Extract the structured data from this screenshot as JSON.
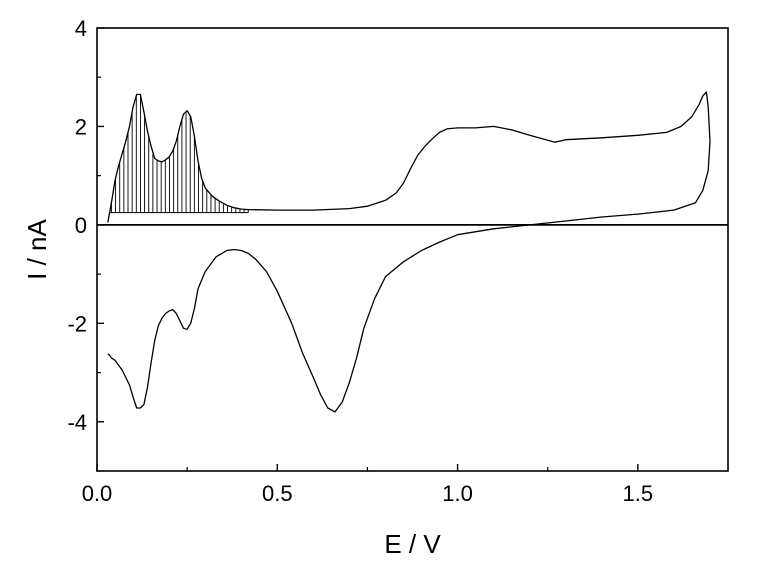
{
  "chart_data": {
    "type": "line",
    "title": "",
    "xlabel": "E / V",
    "ylabel": "I / nA",
    "xlim": [
      0.0,
      1.75
    ],
    "ylim": [
      -5,
      4
    ],
    "x_ticks": [
      "0.0",
      "0.5",
      "1.0",
      "1.5"
    ],
    "x_tick_values": [
      0.0,
      0.5,
      1.0,
      1.5
    ],
    "y_ticks": [
      "4",
      "2",
      "0",
      "-2",
      "-4"
    ],
    "y_tick_values": [
      4,
      2,
      0,
      -2,
      -4
    ],
    "grid": false,
    "zero_line": true,
    "shaded_region": {
      "description": "hatched area between anodic scan and baseline",
      "x_range": [
        0.03,
        0.42
      ],
      "baseline": 0.25
    },
    "series": [
      {
        "points": [
          [
            0.03,
            0.05
          ],
          [
            0.04,
            0.45
          ],
          [
            0.05,
            0.9
          ],
          [
            0.06,
            1.2
          ],
          [
            0.07,
            1.45
          ],
          [
            0.08,
            1.7
          ],
          [
            0.09,
            2.0
          ],
          [
            0.1,
            2.4
          ],
          [
            0.11,
            2.65
          ],
          [
            0.12,
            2.65
          ],
          [
            0.13,
            2.3
          ],
          [
            0.14,
            1.9
          ],
          [
            0.15,
            1.6
          ],
          [
            0.16,
            1.35
          ],
          [
            0.17,
            1.3
          ],
          [
            0.18,
            1.28
          ],
          [
            0.19,
            1.32
          ],
          [
            0.2,
            1.38
          ],
          [
            0.21,
            1.5
          ],
          [
            0.22,
            1.7
          ],
          [
            0.23,
            2.0
          ],
          [
            0.24,
            2.25
          ],
          [
            0.25,
            2.32
          ],
          [
            0.26,
            2.2
          ],
          [
            0.27,
            1.8
          ],
          [
            0.28,
            1.3
          ],
          [
            0.29,
            0.95
          ],
          [
            0.3,
            0.75
          ],
          [
            0.32,
            0.58
          ],
          [
            0.34,
            0.48
          ],
          [
            0.36,
            0.4
          ],
          [
            0.38,
            0.35
          ],
          [
            0.4,
            0.32
          ],
          [
            0.42,
            0.31
          ],
          [
            0.5,
            0.3
          ],
          [
            0.6,
            0.3
          ],
          [
            0.7,
            0.33
          ],
          [
            0.75,
            0.38
          ],
          [
            0.8,
            0.5
          ],
          [
            0.83,
            0.65
          ],
          [
            0.85,
            0.85
          ],
          [
            0.87,
            1.15
          ],
          [
            0.89,
            1.42
          ],
          [
            0.91,
            1.6
          ],
          [
            0.93,
            1.75
          ],
          [
            0.95,
            1.88
          ],
          [
            0.97,
            1.95
          ],
          [
            1.0,
            1.97
          ],
          [
            1.05,
            1.97
          ],
          [
            1.1,
            2.0
          ],
          [
            1.15,
            1.93
          ],
          [
            1.2,
            1.82
          ],
          [
            1.25,
            1.72
          ],
          [
            1.27,
            1.68
          ],
          [
            1.3,
            1.73
          ],
          [
            1.4,
            1.77
          ],
          [
            1.5,
            1.82
          ],
          [
            1.58,
            1.88
          ],
          [
            1.62,
            2.0
          ],
          [
            1.65,
            2.2
          ],
          [
            1.67,
            2.45
          ],
          [
            1.68,
            2.62
          ],
          [
            1.69,
            2.7
          ],
          [
            1.695,
            2.4
          ],
          [
            1.7,
            1.7
          ],
          [
            1.695,
            1.1
          ],
          [
            1.68,
            0.7
          ],
          [
            1.66,
            0.45
          ],
          [
            1.6,
            0.3
          ],
          [
            1.5,
            0.22
          ],
          [
            1.4,
            0.16
          ],
          [
            1.3,
            0.08
          ],
          [
            1.2,
            0.0
          ],
          [
            1.1,
            -0.08
          ],
          [
            1.0,
            -0.2
          ],
          [
            0.95,
            -0.35
          ],
          [
            0.9,
            -0.52
          ],
          [
            0.85,
            -0.75
          ],
          [
            0.8,
            -1.05
          ],
          [
            0.77,
            -1.5
          ],
          [
            0.74,
            -2.1
          ],
          [
            0.72,
            -2.7
          ],
          [
            0.7,
            -3.2
          ],
          [
            0.68,
            -3.6
          ],
          [
            0.66,
            -3.8
          ],
          [
            0.64,
            -3.72
          ],
          [
            0.62,
            -3.45
          ],
          [
            0.6,
            -3.1
          ],
          [
            0.57,
            -2.6
          ],
          [
            0.54,
            -2.0
          ],
          [
            0.5,
            -1.35
          ],
          [
            0.47,
            -0.95
          ],
          [
            0.44,
            -0.7
          ],
          [
            0.42,
            -0.58
          ],
          [
            0.4,
            -0.52
          ],
          [
            0.38,
            -0.5
          ],
          [
            0.36,
            -0.52
          ],
          [
            0.33,
            -0.65
          ],
          [
            0.3,
            -0.95
          ],
          [
            0.28,
            -1.3
          ],
          [
            0.27,
            -1.7
          ],
          [
            0.26,
            -2.0
          ],
          [
            0.25,
            -2.12
          ],
          [
            0.24,
            -2.1
          ],
          [
            0.23,
            -1.95
          ],
          [
            0.22,
            -1.8
          ],
          [
            0.21,
            -1.72
          ],
          [
            0.2,
            -1.75
          ],
          [
            0.19,
            -1.8
          ],
          [
            0.18,
            -1.9
          ],
          [
            0.17,
            -2.05
          ],
          [
            0.16,
            -2.35
          ],
          [
            0.15,
            -2.8
          ],
          [
            0.14,
            -3.3
          ],
          [
            0.13,
            -3.65
          ],
          [
            0.12,
            -3.72
          ],
          [
            0.11,
            -3.72
          ],
          [
            0.1,
            -3.5
          ],
          [
            0.09,
            -3.25
          ],
          [
            0.08,
            -3.1
          ],
          [
            0.07,
            -2.95
          ],
          [
            0.06,
            -2.85
          ],
          [
            0.05,
            -2.75
          ],
          [
            0.04,
            -2.7
          ],
          [
            0.035,
            -2.65
          ],
          [
            0.03,
            -2.62
          ]
        ]
      }
    ]
  }
}
